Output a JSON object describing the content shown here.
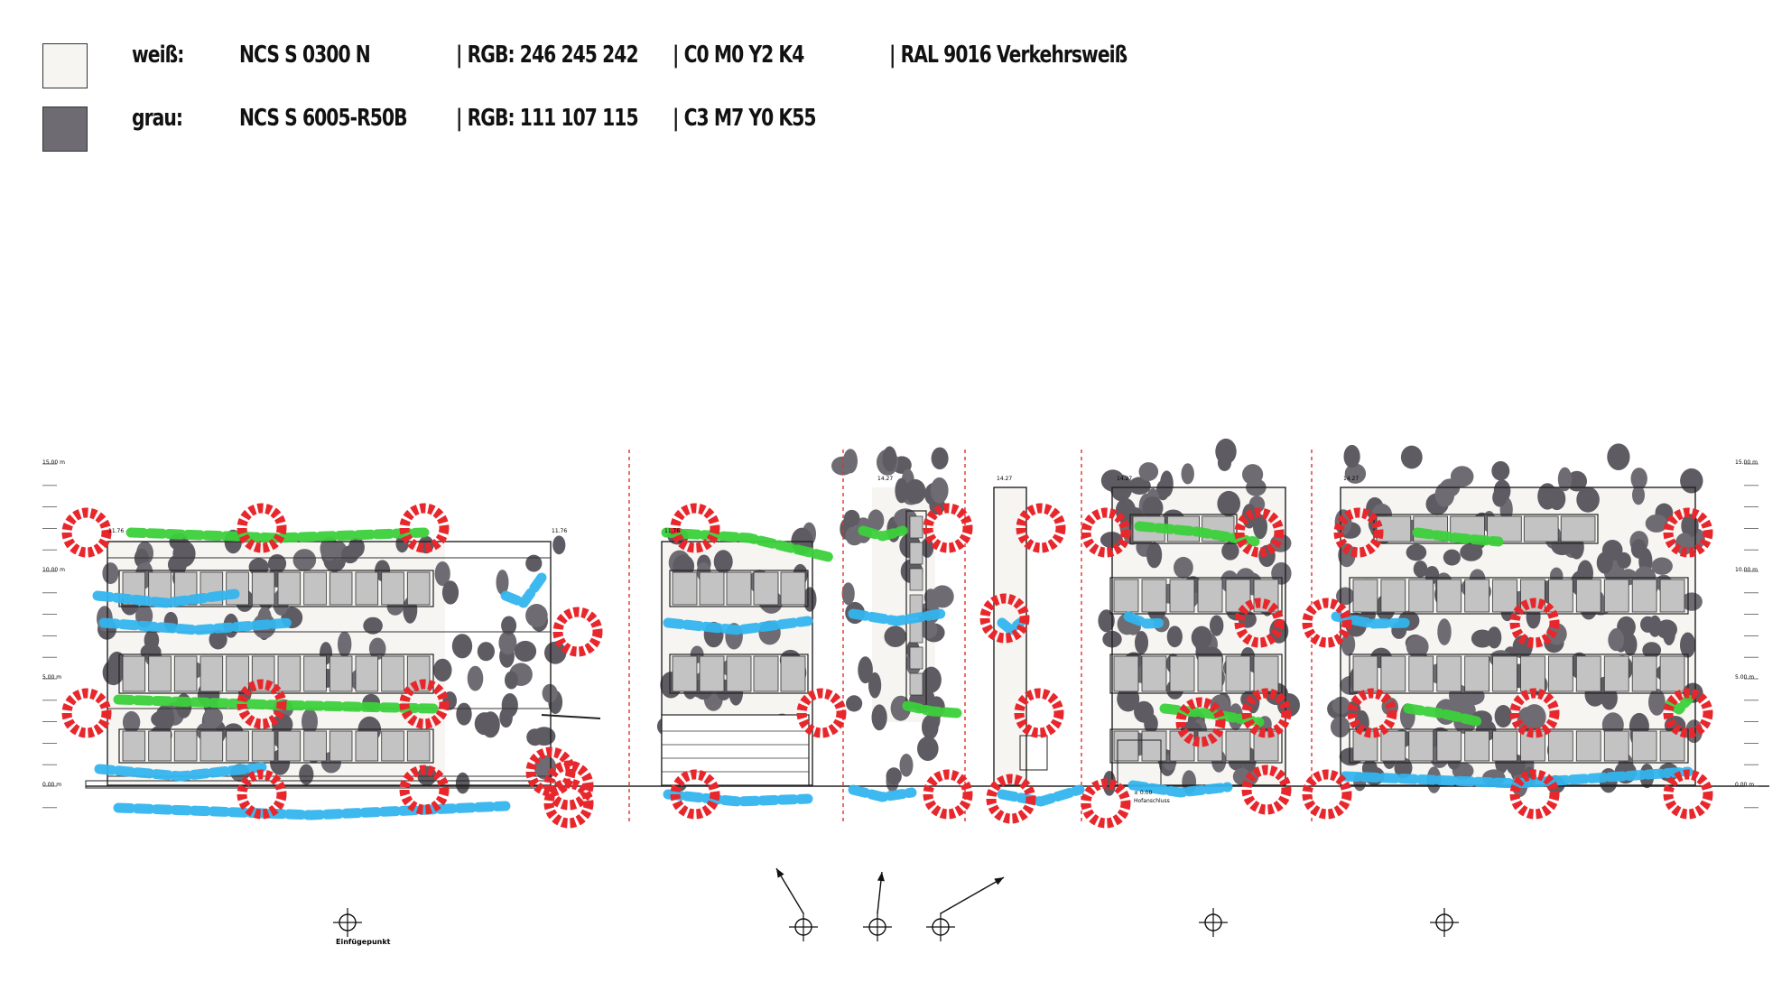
{
  "legend": {
    "rows": [
      {
        "name": "weiß:",
        "ncs": "NCS S 0300 N",
        "rgb": "| RGB: 246 245 242",
        "cmyk": "| C0 M0 Y2 K4",
        "ral": "| RAL 9016 Verkehrsweiß",
        "color": "#f6f5f2"
      },
      {
        "name": "grau:",
        "ncs": "NCS S 6005-R50B",
        "rgb": "| RGB: 111 107 115",
        "cmyk": "| C3 M7 Y0 K55",
        "ral": "",
        "color": "#6f6b73"
      }
    ]
  },
  "elevation": {
    "level_labels": [
      "15.00 m",
      "10.00 m",
      "5.00 m",
      "0.00 m"
    ],
    "height_tags": [
      "11.76",
      "11.76",
      "11.76",
      "14.27",
      "14.27",
      "14.27",
      "14.27"
    ],
    "ground_tag": "± 0.00",
    "ground_note": "Hofanschluss",
    "insertion_point_label": "Einfügepunkt",
    "overlay_colors": {
      "red": "#e8272c",
      "green": "#3bd13b",
      "blue": "#33b5ee",
      "dark": "#5e5b62",
      "divider": "#e03030"
    },
    "patch_colors": {
      "white": "#f6f5f2",
      "grey": "#6f6b73"
    }
  }
}
